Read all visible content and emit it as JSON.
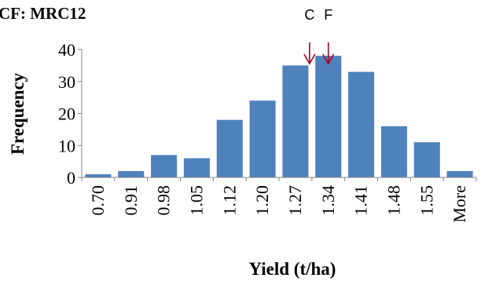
{
  "chart_data": {
    "type": "bar",
    "title": "CF: MRC12",
    "xlabel": "Yield (t/ha)",
    "ylabel": "Frequency",
    "categories": [
      "0.70",
      "0.91",
      "0.98",
      "1.05",
      "1.12",
      "1.20",
      "1.27",
      "1.34",
      "1.41",
      "1.48",
      "1.55",
      "More"
    ],
    "values": [
      1,
      2,
      7,
      6,
      18,
      24,
      35,
      38,
      33,
      16,
      11,
      2
    ],
    "ylim": [
      0,
      40
    ],
    "yticks": [
      "0",
      "10",
      "20",
      "30",
      "40"
    ],
    "grid": false,
    "legend": "none",
    "bar_color": "#4f81bd",
    "markers": [
      {
        "label": "C",
        "x": 1.3,
        "color": "#a50021"
      },
      {
        "label": "F",
        "x": 1.34,
        "color": "#a50021"
      }
    ]
  }
}
